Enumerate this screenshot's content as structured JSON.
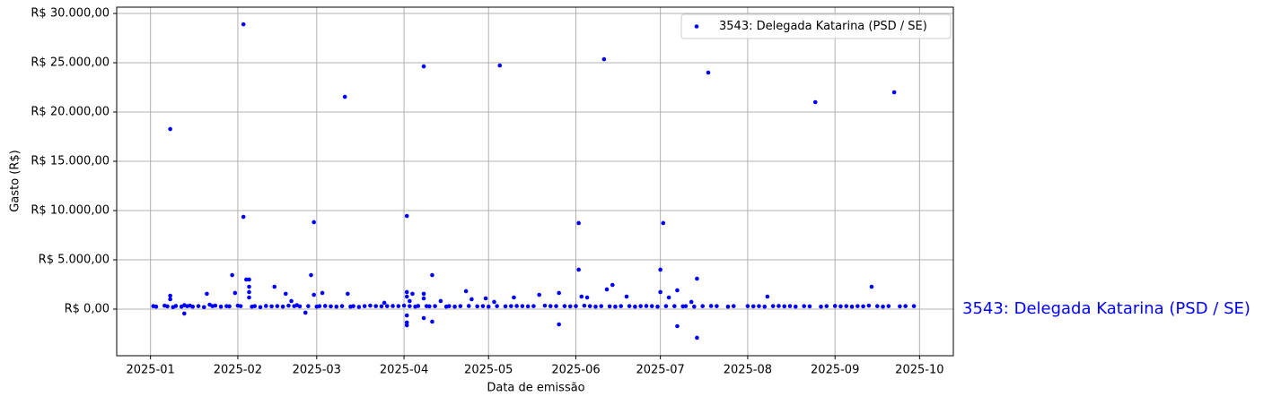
{
  "chart_data": {
    "type": "scatter",
    "x_label": "Data de emissão",
    "y_label": "Gasto (R$)",
    "annotation": "3543: Delegada Katarina (PSD / SE)",
    "xlim": [
      -12,
      285
    ],
    "ylim": [
      -4730,
      30640
    ],
    "grid": true,
    "legend": "upper right",
    "xticks": [
      {
        "value": 0,
        "label": "2025-01"
      },
      {
        "value": 31,
        "label": "2025-02"
      },
      {
        "value": 59,
        "label": "2025-03"
      },
      {
        "value": 90,
        "label": "2025-04"
      },
      {
        "value": 120,
        "label": "2025-05"
      },
      {
        "value": 151,
        "label": "2025-06"
      },
      {
        "value": 181,
        "label": "2025-07"
      },
      {
        "value": 212,
        "label": "2025-08"
      },
      {
        "value": 243,
        "label": "2025-09"
      },
      {
        "value": 273,
        "label": "2025-10"
      }
    ],
    "yticks": [
      {
        "value": 0,
        "label": "R$ 0,00"
      },
      {
        "value": 5000,
        "label": "R$ 5.000,00"
      },
      {
        "value": 10000,
        "label": "R$ 10.000,00"
      },
      {
        "value": 15000,
        "label": "R$ 15.000,00"
      },
      {
        "value": 20000,
        "label": "R$ 20.000,00"
      },
      {
        "value": 25000,
        "label": "R$ 25.000,00"
      },
      {
        "value": 30000,
        "label": "R$ 30.000,00"
      }
    ],
    "series": [
      {
        "name": "3543: Delegada Katarina (PSD / SE)",
        "color": "#0000ff",
        "x": [
          7,
          33,
          33,
          58,
          69,
          91,
          97,
          124,
          152,
          161,
          182,
          198,
          236,
          264,
          7,
          7,
          12,
          20,
          29,
          30,
          34,
          35,
          35,
          35,
          35,
          44,
          48,
          50,
          55,
          57,
          58,
          61,
          70,
          83,
          91,
          91,
          91,
          91,
          91,
          92,
          93,
          97,
          97,
          97,
          100,
          100,
          103,
          112,
          114,
          119,
          122,
          129,
          138,
          145,
          145,
          152,
          153,
          155,
          162,
          164,
          169,
          181,
          181,
          184,
          187,
          187,
          192,
          194,
          194,
          219,
          256,
          1,
          2,
          5,
          6,
          8,
          9,
          11,
          12,
          13,
          14,
          15,
          17,
          19,
          21,
          22,
          23,
          25,
          27,
          28,
          31,
          32,
          36,
          37,
          39,
          41,
          43,
          45,
          47,
          49,
          51,
          52,
          53,
          56,
          59,
          60,
          62,
          64,
          66,
          68,
          71,
          72,
          74,
          76,
          78,
          80,
          82,
          84,
          86,
          88,
          90,
          92,
          94,
          95,
          98,
          99,
          101,
          105,
          106,
          108,
          110,
          113,
          116,
          118,
          120,
          123,
          126,
          128,
          130,
          132,
          134,
          136,
          140,
          142,
          144,
          147,
          149,
          151,
          154,
          156,
          158,
          160,
          163,
          165,
          167,
          170,
          172,
          174,
          176,
          178,
          180,
          183,
          186,
          189,
          190,
          193,
          196,
          199,
          201,
          205,
          207,
          212,
          214,
          216,
          218,
          221,
          223,
          225,
          227,
          229,
          232,
          234,
          238,
          240,
          243,
          245,
          247,
          249,
          251,
          253,
          255,
          258,
          260,
          262,
          266,
          268,
          271
        ],
        "values": [
          18270,
          28900,
          9360,
          8820,
          21540,
          9450,
          24630,
          24720,
          8730,
          25360,
          8730,
          24000,
          21000,
          22000,
          1360,
          1000,
          -450,
          1550,
          3450,
          1640,
          3000,
          3000,
          1730,
          1180,
          2270,
          2270,
          1550,
          820,
          -360,
          3450,
          1450,
          1640,
          1550,
          640,
          1730,
          1270,
          -640,
          -1360,
          -1640,
          820,
          1550,
          1550,
          1090,
          -910,
          -1270,
          3450,
          820,
          1820,
          1000,
          1090,
          730,
          1180,
          1450,
          1640,
          -1550,
          4000,
          1270,
          1180,
          2000,
          2450,
          1270,
          4000,
          1730,
          1180,
          1910,
          -1730,
          730,
          3090,
          -2910,
          1270,
          2270,
          300,
          250,
          350,
          280,
          200,
          320,
          250,
          400,
          300,
          350,
          250,
          300,
          200,
          450,
          300,
          350,
          250,
          300,
          280,
          350,
          300,
          250,
          300,
          200,
          320,
          280,
          300,
          250,
          350,
          300,
          400,
          280,
          300,
          250,
          300,
          320,
          280,
          250,
          300,
          250,
          300,
          220,
          300,
          350,
          300,
          280,
          300,
          320,
          300,
          350,
          300,
          250,
          320,
          300,
          280,
          300,
          250,
          300,
          250,
          300,
          320,
          280,
          300,
          250,
          300,
          280,
          300,
          320,
          300,
          280,
          300,
          350,
          300,
          300,
          300,
          280,
          300,
          350,
          300,
          250,
          300,
          280,
          250,
          300,
          300,
          250,
          300,
          320,
          300,
          250,
          300,
          300,
          280,
          300,
          250,
          300,
          320,
          300,
          250,
          300,
          300,
          280,
          300,
          250,
          300,
          320,
          280,
          300,
          250,
          300,
          280,
          250,
          300,
          320,
          280,
          300,
          250,
          300,
          280,
          350,
          300,
          250,
          300,
          280,
          300,
          300
        ]
      }
    ]
  }
}
